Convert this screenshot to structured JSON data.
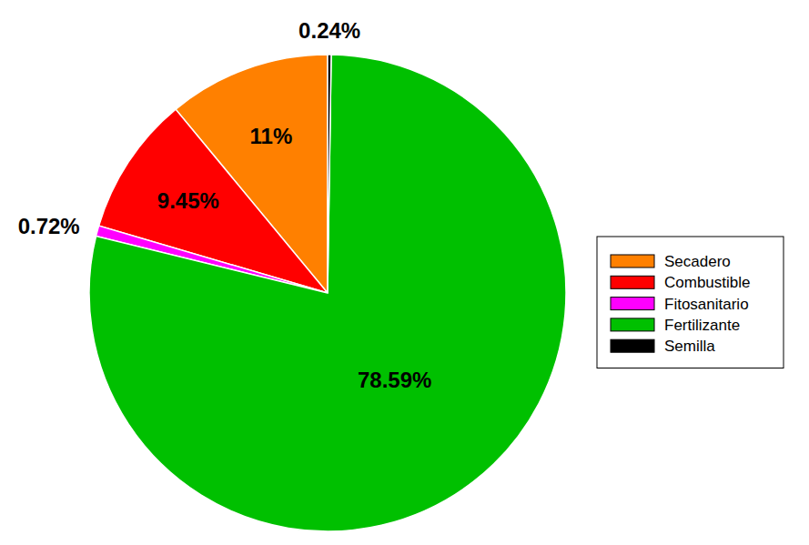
{
  "chart_data": {
    "type": "pie",
    "categories": [
      "Secadero",
      "Combustible",
      "Fitosanitario",
      "Fertilizante",
      "Semilla"
    ],
    "values": [
      11,
      9.45,
      0.72,
      78.59,
      0.24
    ],
    "value_labels": [
      "11%",
      "9.45%",
      "0.72%",
      "78.59%",
      "0.24%"
    ],
    "colors": [
      "#ff8000",
      "#ff0000",
      "#ff00ff",
      "#00c000",
      "#000000"
    ],
    "data_labels": true,
    "legend": "right"
  }
}
